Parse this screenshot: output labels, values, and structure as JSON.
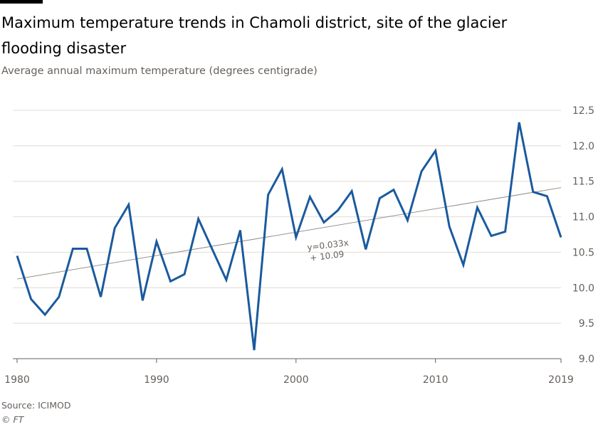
{
  "title": "Maximum temperature trends in Chamoli district, site of the glacier flooding disaster",
  "subtitle": "Average annual maximum temperature (degrees centigrade)",
  "source": "Source: ICIMOD",
  "credit": "© FT",
  "colors": {
    "line": "#1a5a9e",
    "trend": "#8a8580",
    "grid": "#e9e0d9"
  },
  "chart_data": {
    "type": "line",
    "x": [
      1980,
      1981,
      1982,
      1983,
      1984,
      1985,
      1986,
      1987,
      1988,
      1989,
      1990,
      1991,
      1992,
      1993,
      1994,
      1995,
      1996,
      1997,
      1998,
      1999,
      2000,
      2001,
      2002,
      2003,
      2004,
      2005,
      2006,
      2007,
      2008,
      2009,
      2010,
      2011,
      2012,
      2013,
      2014,
      2015,
      2016,
      2017,
      2018,
      2019
    ],
    "series": [
      {
        "values": [
          10.45,
          9.84,
          9.62,
          9.87,
          10.55,
          10.55,
          9.87,
          10.84,
          11.17,
          9.82,
          10.65,
          10.09,
          10.19,
          10.97,
          10.54,
          10.11,
          10.81,
          9.12,
          11.31,
          11.67,
          10.71,
          11.28,
          10.92,
          11.09,
          11.36,
          10.54,
          11.26,
          11.38,
          10.95,
          11.64,
          11.93,
          10.86,
          10.32,
          11.13,
          10.73,
          10.79,
          12.33,
          11.35,
          11.29,
          10.71
        ]
      }
    ],
    "trendline": {
      "slope": 0.033,
      "intercept": 10.09,
      "label_line1": "y=0.033x",
      "label_line2": "+ 10.09"
    },
    "ylim": [
      9.0,
      12.5
    ],
    "yticks": [
      "9.0",
      "9.5",
      "10.0",
      "10.5",
      "11.0",
      "11.5",
      "12.0",
      "12.5"
    ],
    "xticks": [
      "1980",
      "1990",
      "2000",
      "2010",
      "2019"
    ],
    "xlim": [
      1980,
      2019
    ],
    "grid": true,
    "y_axis_side": "right"
  }
}
